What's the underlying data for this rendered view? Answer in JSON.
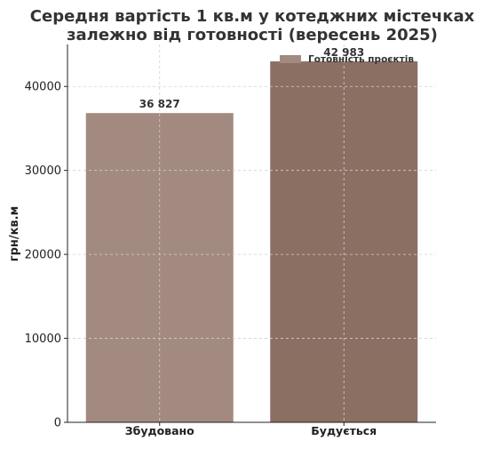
{
  "chart_data": {
    "type": "bar",
    "title_lines": [
      "Середня вартість 1 кв.м у котеджних містечках",
      "залежно від готовності (вересень 2025)"
    ],
    "categories": [
      "Збудовано",
      "Будується"
    ],
    "values": [
      36827,
      42983
    ],
    "data_labels": [
      "36 827",
      "42 983"
    ],
    "bar_colors": [
      "#a38a80",
      "#8b6f63"
    ],
    "ylabel": "грн/кв.м",
    "xlabel": "",
    "ylim": [
      0,
      45000
    ],
    "yticks": [
      0,
      10000,
      20000,
      30000,
      40000
    ],
    "grid": true,
    "legend": {
      "label": "Готовність проєктів",
      "color": "#a38a80",
      "placement": "top-right"
    }
  }
}
